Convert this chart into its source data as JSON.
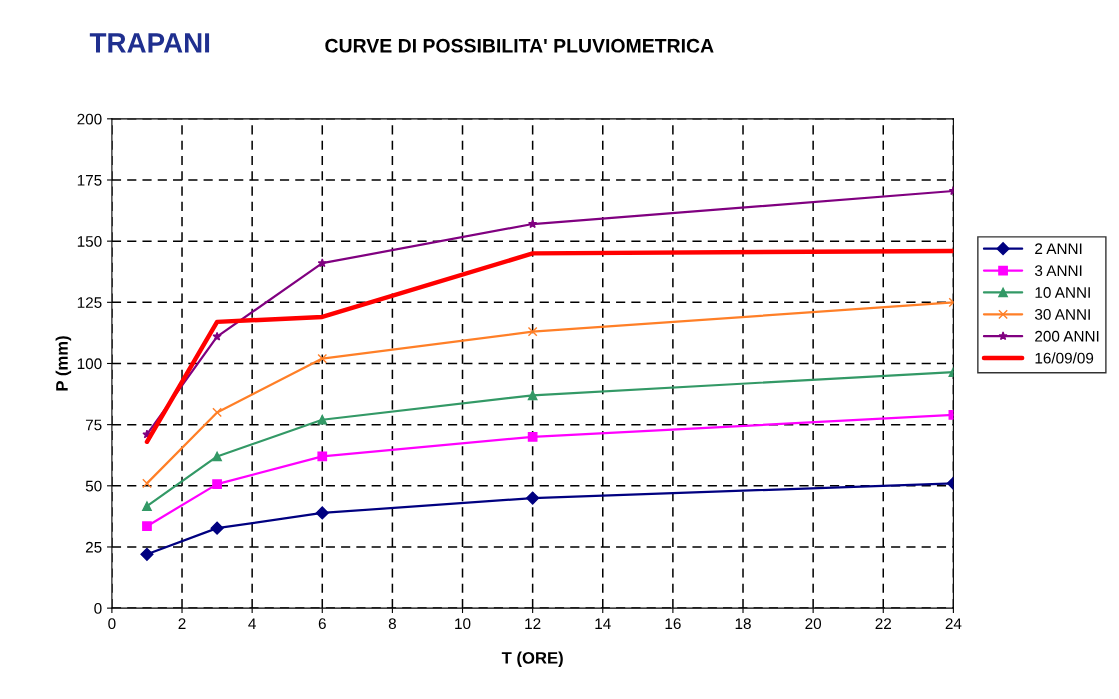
{
  "chart_data": {
    "type": "line",
    "title": "TRAPANI",
    "subtitle": "CURVE DI POSSIBILITA' PLUVIOMETRICA",
    "xlabel": "T (ORE)",
    "ylabel": "P (mm)",
    "x": [
      1,
      3,
      6,
      12,
      24
    ],
    "series": [
      {
        "name": "2 ANNI",
        "color": "#000080",
        "marker": "diamond",
        "values": [
          22,
          32.7,
          38.9,
          45,
          51
        ]
      },
      {
        "name": "3 ANNI",
        "color": "#ff00ff",
        "marker": "square",
        "values": [
          33.5,
          50.7,
          62,
          70,
          79
        ]
      },
      {
        "name": "10 ANNI",
        "color": "#339966",
        "marker": "triangle",
        "values": [
          41.7,
          62,
          77,
          87,
          96.5
        ]
      },
      {
        "name": "30 ANNI",
        "color": "#ff7f27",
        "marker": "cross",
        "values": [
          51,
          80,
          102,
          113,
          125
        ]
      },
      {
        "name": "200 ANNI",
        "color": "#800080",
        "marker": "star",
        "values": [
          71,
          111,
          141,
          157,
          170.5
        ]
      },
      {
        "name": "16/09/09",
        "color": "#ff0000",
        "marker": "none",
        "values": [
          68,
          117,
          119,
          145,
          146
        ]
      }
    ],
    "xlim": [
      0,
      24
    ],
    "xticks": [
      0,
      2,
      4,
      6,
      8,
      10,
      12,
      14,
      16,
      18,
      20,
      22,
      24
    ],
    "ylim": [
      0,
      200
    ],
    "yticks": [
      0,
      25,
      50,
      75,
      100,
      125,
      150,
      175,
      200
    ],
    "grid": true,
    "legend": "right",
    "line_style": "solid"
  }
}
